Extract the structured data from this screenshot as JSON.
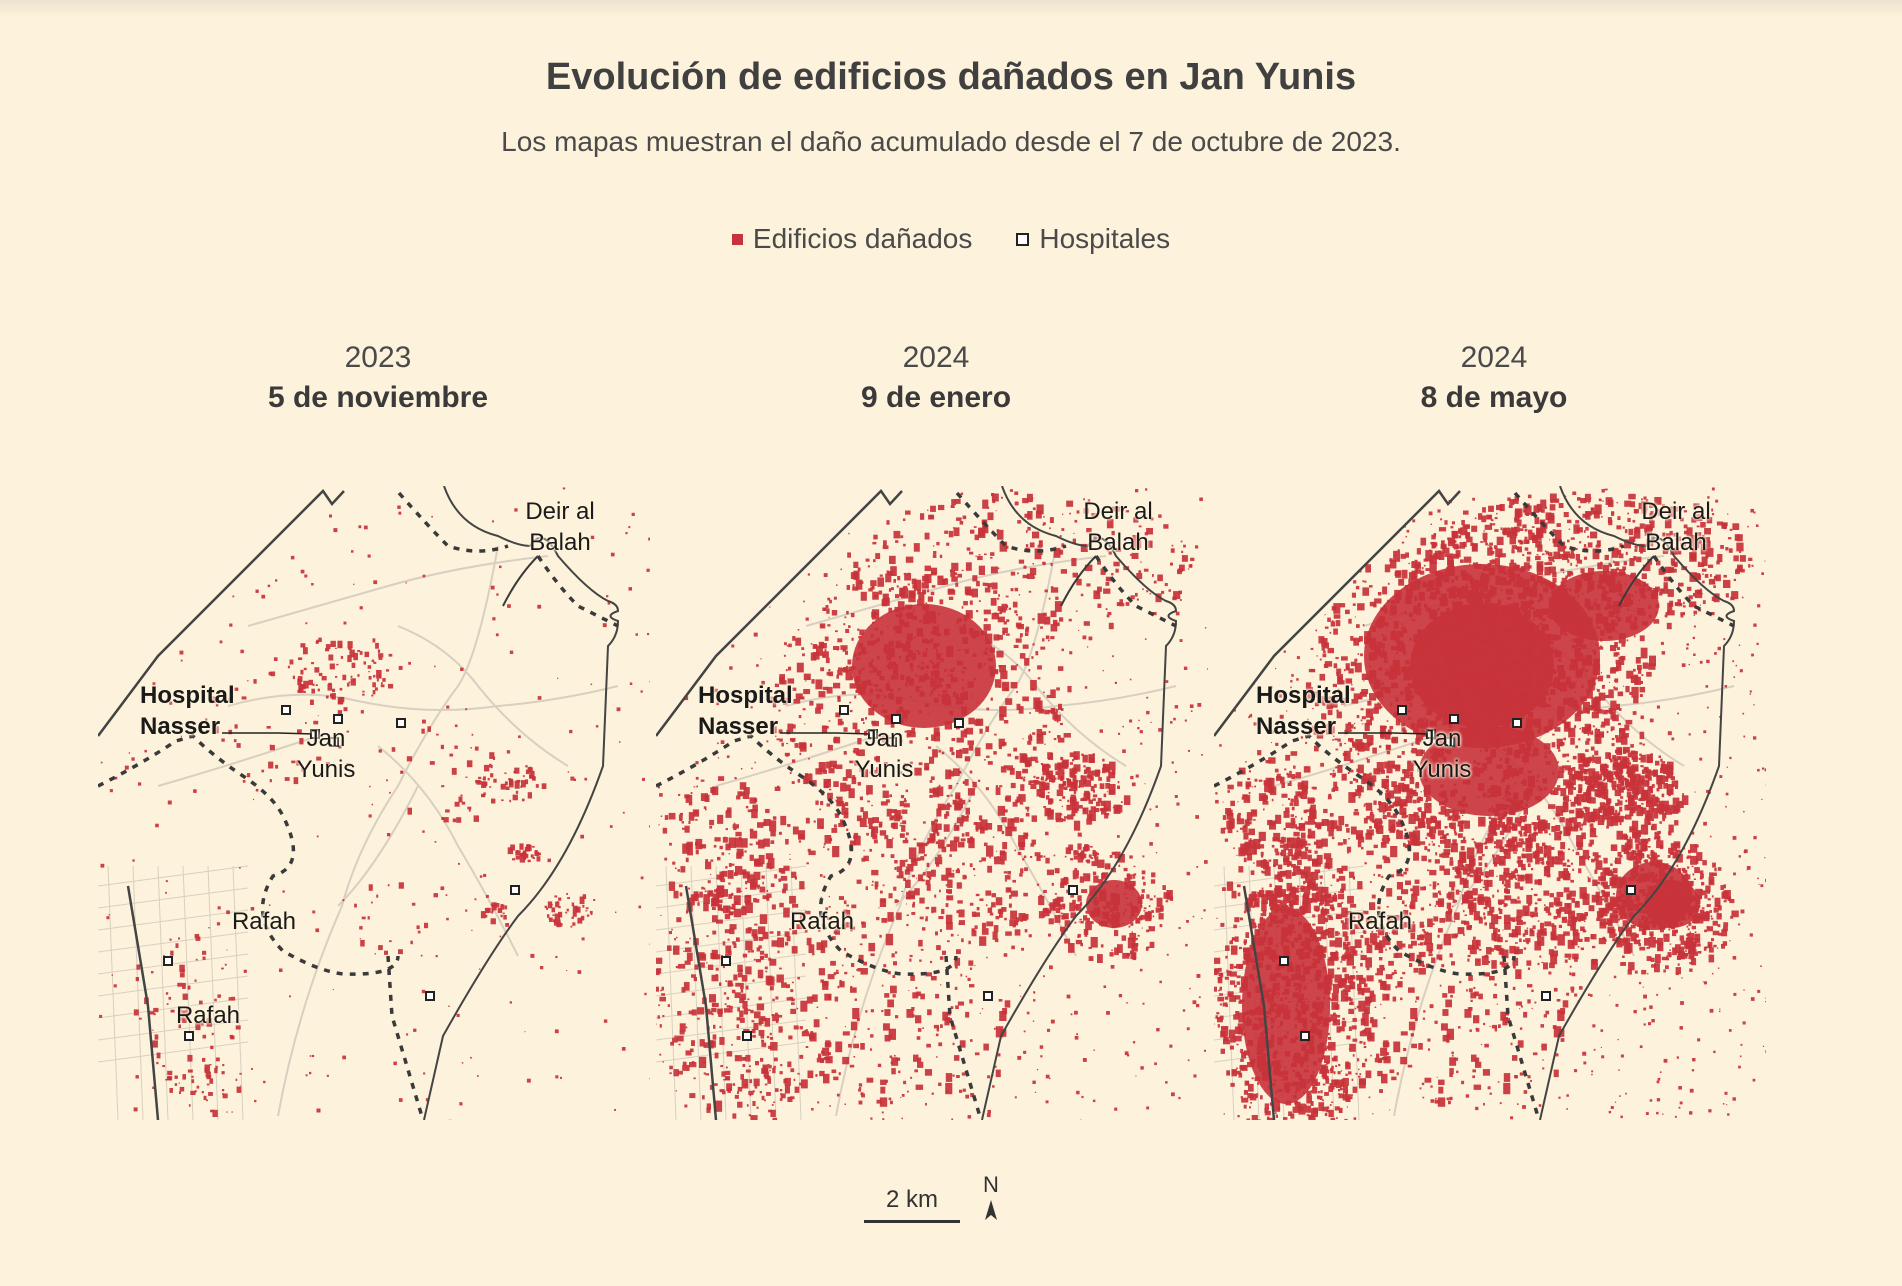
{
  "title": "Evolución de edificios dañados en Jan Yunis",
  "subtitle": "Los mapas muestran el daño acumulado desde el 7 de octubre de 2023.",
  "legend": {
    "damaged": "Edificios dañados",
    "hospitals": "Hospitales"
  },
  "colors": {
    "background": "#fdf2db",
    "damage": "#c8323a",
    "coast": "#444444",
    "border": "#3a3a3a",
    "roads": "#d8cfc0",
    "hospital_fill": "#ffffff"
  },
  "panels": [
    {
      "year": "2023",
      "date": "5 de noviembre",
      "damage_level": 1
    },
    {
      "year": "2024",
      "date": "9 de enero",
      "damage_level": 2
    },
    {
      "year": "2024",
      "date": "8 de mayo",
      "damage_level": 3
    }
  ],
  "place_labels": {
    "hospital": "Hospital\nNasser",
    "jan_yunis": "Jan\nYunis",
    "deir_al_balah": "Deir al\nBalah",
    "rafah": "Rafah"
  },
  "scale": {
    "label": "2 km"
  },
  "north": {
    "label": "N"
  }
}
